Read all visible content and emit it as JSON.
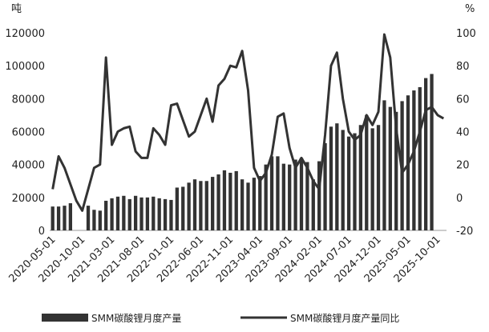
{
  "chart_data": {
    "type": "bar+line",
    "title": "",
    "left_unit": "吨",
    "right_unit": "%",
    "y_left": {
      "lim": [
        0,
        120000
      ],
      "ticks": [
        0,
        20000,
        40000,
        60000,
        80000,
        100000,
        120000
      ]
    },
    "y_right": {
      "lim": [
        -20,
        100
      ],
      "ticks": [
        -20,
        0,
        20,
        40,
        60,
        80,
        100
      ]
    },
    "x_tick_labels": [
      "2020-05-01",
      "2020-10-01",
      "2021-03-01",
      "2021-08-01",
      "2022-01-01",
      "2022-06-01",
      "2022-11-01",
      "2023-04-01",
      "2023-09-01",
      "2024-02-01",
      "2024-07-01",
      "2024-12-01",
      "2025-05-01",
      "2025-10-01"
    ],
    "categories": [
      "2020-05",
      "2020-06",
      "2020-07",
      "2020-08",
      "2020-09",
      "2020-10",
      "2020-11",
      "2020-12",
      "2021-01",
      "2021-02",
      "2021-03",
      "2021-04",
      "2021-05",
      "2021-06",
      "2021-07",
      "2021-08",
      "2021-09",
      "2021-10",
      "2021-11",
      "2021-12",
      "2022-01",
      "2022-02",
      "2022-03",
      "2022-04",
      "2022-05",
      "2022-06",
      "2022-07",
      "2022-08",
      "2022-09",
      "2022-10",
      "2022-11",
      "2022-12",
      "2023-01",
      "2023-02",
      "2023-03",
      "2023-04",
      "2023-05",
      "2023-06",
      "2023-07",
      "2023-08",
      "2023-09",
      "2023-10",
      "2023-11",
      "2023-12",
      "2024-01",
      "2024-02",
      "2024-03",
      "2024-04",
      "2024-05",
      "2024-06",
      "2024-07",
      "2024-08",
      "2024-09",
      "2024-10",
      "2024-11",
      "2024-12",
      "2025-01",
      "2025-02",
      "2025-03",
      "2025-04",
      "2025-05",
      "2025-06",
      "2025-07",
      "2025-08",
      "2025-09",
      "2025-10",
      "2025-11"
    ],
    "series": [
      {
        "name": "SMM碳酸锂月度产量",
        "type": "bar",
        "axis": "left",
        "color": "#333333",
        "values": [
          14500,
          14500,
          15000,
          16500,
          0,
          0,
          15000,
          12500,
          12000,
          18000,
          19500,
          20500,
          21000,
          19000,
          21000,
          20000,
          20000,
          20500,
          19500,
          19000,
          18500,
          26000,
          26500,
          29000,
          31000,
          30000,
          30000,
          32500,
          34000,
          36500,
          35000,
          36000,
          31000,
          29000,
          32000,
          33000,
          40000,
          45000,
          45000,
          40500,
          40000,
          43000,
          44000,
          41500,
          31000,
          42000,
          53000,
          63000,
          65000,
          61000,
          57000,
          59000,
          64000,
          70000,
          62000,
          64000,
          79000,
          75000,
          72000,
          78500,
          82000,
          85000,
          87000,
          92500,
          95000,
          0,
          0
        ]
      },
      {
        "name": "SMM碳酸锂月度产量同比",
        "type": "line",
        "axis": "right",
        "color": "#333333",
        "values": [
          5,
          25,
          18,
          8,
          -2,
          -8,
          5,
          18,
          20,
          85,
          32,
          40,
          42,
          43,
          28,
          24,
          24,
          42,
          38,
          32,
          56,
          57,
          47,
          37,
          40,
          50,
          60,
          46,
          68,
          72,
          80,
          79,
          89,
          65,
          18,
          10,
          15,
          26,
          49,
          51,
          30,
          18,
          24,
          18,
          10,
          5,
          38,
          80,
          88,
          60,
          40,
          35,
          38,
          50,
          44,
          52,
          99,
          85,
          42,
          15,
          20,
          28,
          40,
          53,
          55,
          50,
          48
        ]
      }
    ],
    "legend": {
      "position": "bottom"
    },
    "grid": false
  }
}
